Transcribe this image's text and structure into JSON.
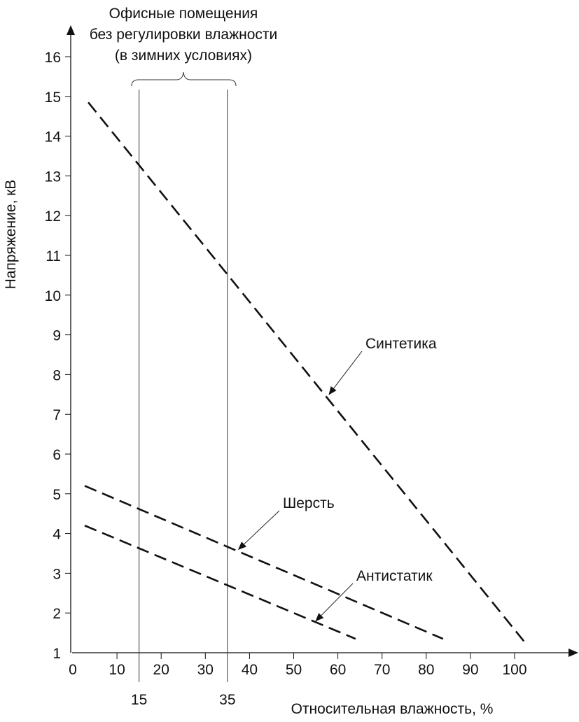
{
  "chart_data": {
    "type": "line",
    "title": [
      "Офисные помещения",
      "без регулировки влажности",
      "(в зимних условиях)"
    ],
    "xlabel": "Относительная влажность, %",
    "ylabel": "Напряжение, кВ",
    "xlim": [
      0,
      110
    ],
    "ylim": [
      1,
      16.5
    ],
    "xticks": [
      "0",
      "10",
      "20",
      "30",
      "40",
      "50",
      "60",
      "70",
      "80",
      "90",
      "100"
    ],
    "xticks_extra": [
      "15",
      "35"
    ],
    "yticks": [
      "1",
      "2",
      "3",
      "4",
      "5",
      "6",
      "7",
      "8",
      "9",
      "10",
      "11",
      "12",
      "13",
      "14",
      "15",
      "16"
    ],
    "grid": false,
    "reference_lines_x": [
      15,
      35
    ],
    "series": [
      {
        "name": "Синтетика",
        "x": [
          3.5,
          102.4
        ],
        "y": [
          14.85,
          1.25
        ],
        "style": "dashed"
      },
      {
        "name": "Шерсть",
        "x": [
          2.7,
          83.8
        ],
        "y": [
          5.2,
          1.35
        ],
        "style": "dashed"
      },
      {
        "name": "Антистатик",
        "x": [
          2.7,
          64
        ],
        "y": [
          4.2,
          1.35
        ],
        "style": "dashed"
      }
    ],
    "annotations": [
      {
        "text": "Синтетика",
        "target": [
          58,
          7.5
        ]
      },
      {
        "text": "Шерсть",
        "target": [
          37.5,
          3.6
        ]
      },
      {
        "text": "Антистатик",
        "target": [
          55,
          1.8
        ]
      }
    ]
  }
}
